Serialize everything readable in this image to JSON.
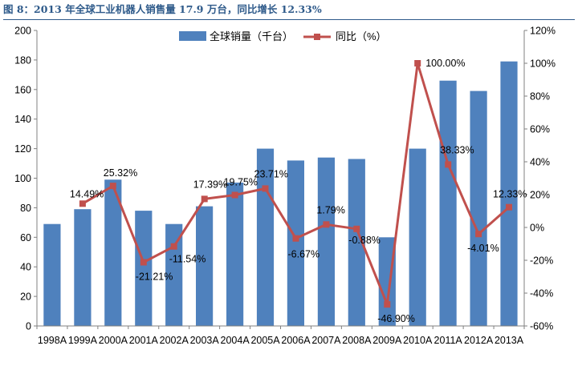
{
  "caption": "图 8：2013 年全球工业机器人销售量 17.9 万台，同比增长 12.33%",
  "chart_data": {
    "type": "bar",
    "categories": [
      "1998A",
      "1999A",
      "2000A",
      "2001A",
      "2002A",
      "2003A",
      "2004A",
      "2005A",
      "2006A",
      "2007A",
      "2008A",
      "2009A",
      "2010A",
      "2011A",
      "2012A",
      "2013A"
    ],
    "series": [
      {
        "name": "全球销量（千台）",
        "type": "bar",
        "axis": "left",
        "color": "#4f81bd",
        "values": [
          69,
          79,
          99,
          78,
          69,
          81,
          97,
          120,
          112,
          114,
          113,
          60,
          120,
          166,
          159,
          179
        ]
      },
      {
        "name": "同比（%）",
        "type": "line",
        "axis": "right",
        "color": "#c0504d",
        "values": [
          null,
          14.49,
          25.32,
          -21.21,
          -11.54,
          17.39,
          19.75,
          23.71,
          -6.67,
          1.79,
          -0.88,
          -46.9,
          100.0,
          38.33,
          -4.01,
          12.33
        ],
        "labels": [
          "",
          "14.49%",
          "25.32%",
          "-21.21%",
          "-11.54%",
          "17.39%",
          "19.75%",
          "23.71%",
          "-6.67%",
          "1.79%",
          "-0.88%",
          "-46.90%",
          "100.00%",
          "38.33%",
          "-4.01%",
          "12.33%"
        ]
      }
    ],
    "y_left": {
      "min": 0,
      "max": 200,
      "step": 20,
      "ticks": [
        "0",
        "20",
        "40",
        "60",
        "80",
        "100",
        "120",
        "140",
        "160",
        "180",
        "200"
      ]
    },
    "y_right": {
      "min": -60,
      "max": 120,
      "step": 20,
      "ticks": [
        "-60%",
        "-40%",
        "-20%",
        "0%",
        "20%",
        "40%",
        "60%",
        "80%",
        "100%",
        "120%"
      ]
    },
    "legend": "top-center",
    "grid": false
  }
}
